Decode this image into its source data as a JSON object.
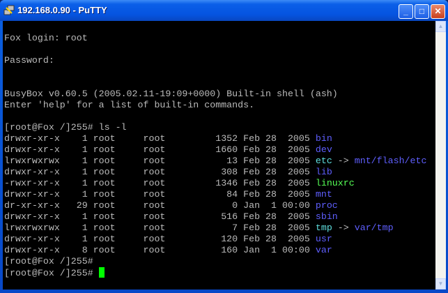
{
  "window": {
    "title": "192.168.0.90 - PuTTY",
    "minimize": "_",
    "maximize": "□",
    "close": "✕"
  },
  "colors": {
    "default": "#bbbbbb",
    "dir": "#5f5fff",
    "link": "#5fdfdf",
    "exec": "#55ff55",
    "cursor": "#00ff00"
  },
  "terminal": {
    "lines": [
      [],
      [
        {
          "t": "Fox login: root"
        }
      ],
      [],
      [
        {
          "t": "Password:"
        }
      ],
      [],
      [],
      [
        {
          "t": "BusyBox v0.60.5 (2005.02.11-19:09+0000) Built-in shell (ash)"
        }
      ],
      [
        {
          "t": "Enter 'help' for a list of built-in commands."
        }
      ],
      [],
      [
        {
          "t": "[root@Fox /]255# ls -l"
        }
      ],
      [
        {
          "t": "drwxr-xr-x    1 root     root         1352 Feb 28  2005 "
        },
        {
          "t": "bin",
          "c": "dir"
        }
      ],
      [
        {
          "t": "drwxr-xr-x    1 root     root         1660 Feb 28  2005 "
        },
        {
          "t": "dev",
          "c": "dir"
        }
      ],
      [
        {
          "t": "lrwxrwxrwx    1 root     root           13 Feb 28  2005 "
        },
        {
          "t": "etc",
          "c": "link"
        },
        {
          "t": " -> "
        },
        {
          "t": "mnt/flash/etc",
          "c": "dir"
        }
      ],
      [
        {
          "t": "drwxr-xr-x    1 root     root          308 Feb 28  2005 "
        },
        {
          "t": "lib",
          "c": "dir"
        }
      ],
      [
        {
          "t": "-rwxr-xr-x    1 root     root         1346 Feb 28  2005 "
        },
        {
          "t": "linuxrc",
          "c": "exec"
        }
      ],
      [
        {
          "t": "drwxr-xr-x    1 root     root           84 Feb 28  2005 "
        },
        {
          "t": "mnt",
          "c": "dir"
        }
      ],
      [
        {
          "t": "dr-xr-xr-x   29 root     root            0 Jan  1 00:00 "
        },
        {
          "t": "proc",
          "c": "dir"
        }
      ],
      [
        {
          "t": "drwxr-xr-x    1 root     root          516 Feb 28  2005 "
        },
        {
          "t": "sbin",
          "c": "dir"
        }
      ],
      [
        {
          "t": "lrwxrwxrwx    1 root     root            7 Feb 28  2005 "
        },
        {
          "t": "tmp",
          "c": "link"
        },
        {
          "t": " -> "
        },
        {
          "t": "var/tmp",
          "c": "dir"
        }
      ],
      [
        {
          "t": "drwxr-xr-x    1 root     root          120 Feb 28  2005 "
        },
        {
          "t": "usr",
          "c": "dir"
        }
      ],
      [
        {
          "t": "drwxr-xr-x    8 root     root          160 Jan  1 00:00 "
        },
        {
          "t": "var",
          "c": "dir"
        }
      ],
      [
        {
          "t": "[root@Fox /]255#"
        }
      ],
      [
        {
          "t": "[root@Fox /]255# "
        },
        {
          "cursor": true
        }
      ]
    ]
  }
}
